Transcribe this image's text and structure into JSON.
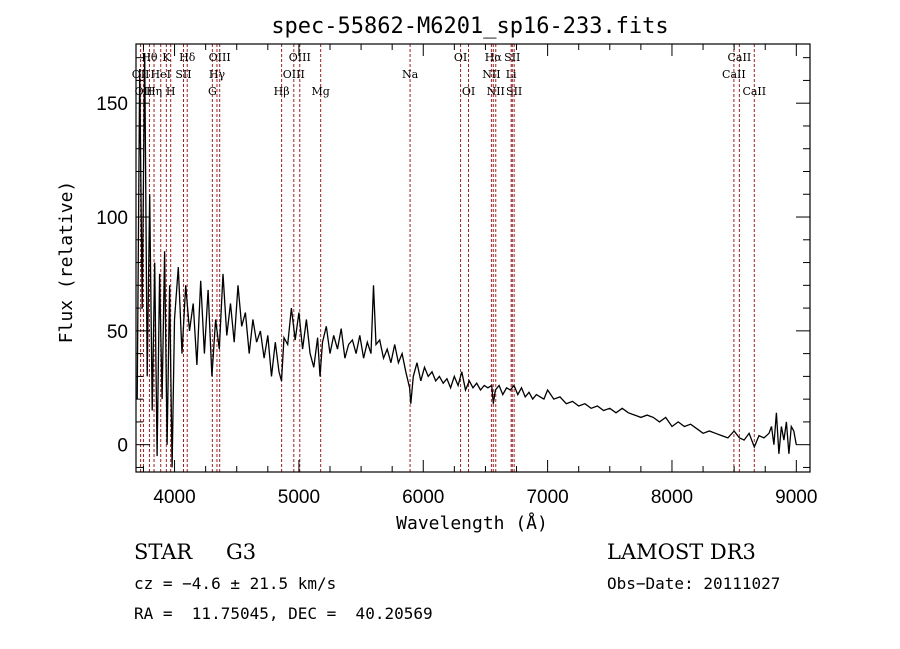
{
  "chart_data": {
    "type": "line",
    "title": "spec-55862-M6201_sp16-233.fits",
    "xlabel": "Wavelength (Å)",
    "ylabel": "Flux (relative)",
    "xlim": [
      3690,
      9110
    ],
    "ylim": [
      -12,
      176
    ],
    "xticks": [
      4000,
      5000,
      6000,
      7000,
      8000,
      9000
    ],
    "yticks": [
      0,
      50,
      100,
      150
    ],
    "x_minor_step": 250,
    "y_minor_step": 10,
    "grid": false,
    "legend": "none",
    "series": [
      {
        "name": "spectrum",
        "color": "#000000",
        "x": [
          3700,
          3720,
          3740,
          3760,
          3780,
          3800,
          3820,
          3840,
          3860,
          3880,
          3900,
          3920,
          3940,
          3960,
          3980,
          4000,
          4030,
          4060,
          4090,
          4120,
          4150,
          4180,
          4210,
          4240,
          4270,
          4300,
          4330,
          4360,
          4390,
          4420,
          4450,
          4480,
          4510,
          4540,
          4570,
          4600,
          4630,
          4660,
          4690,
          4720,
          4750,
          4780,
          4810,
          4840,
          4860,
          4880,
          4910,
          4940,
          4970,
          5000,
          5030,
          5060,
          5090,
          5120,
          5150,
          5170,
          5190,
          5220,
          5250,
          5280,
          5310,
          5340,
          5370,
          5400,
          5430,
          5460,
          5490,
          5520,
          5550,
          5580,
          5600,
          5620,
          5650,
          5680,
          5710,
          5740,
          5770,
          5800,
          5830,
          5860,
          5890,
          5900,
          5920,
          5950,
          5980,
          6010,
          6040,
          6070,
          6100,
          6130,
          6160,
          6190,
          6220,
          6250,
          6280,
          6310,
          6340,
          6370,
          6400,
          6430,
          6460,
          6490,
          6520,
          6550,
          6563,
          6580,
          6610,
          6640,
          6670,
          6700,
          6730,
          6760,
          6790,
          6820,
          6850,
          6880,
          6910,
          6940,
          6970,
          7000,
          7050,
          7100,
          7150,
          7200,
          7250,
          7300,
          7350,
          7400,
          7450,
          7500,
          7550,
          7600,
          7650,
          7700,
          7750,
          7800,
          7850,
          7900,
          7950,
          8000,
          8050,
          8100,
          8150,
          8200,
          8250,
          8300,
          8350,
          8400,
          8450,
          8500,
          8542,
          8580,
          8620,
          8662,
          8700,
          8740,
          8780,
          8800,
          8820,
          8840,
          8860,
          8880,
          8900,
          8920,
          8940,
          8960,
          8980,
          9000
        ],
        "y": [
          20,
          165,
          60,
          172,
          30,
          110,
          15,
          80,
          -5,
          75,
          20,
          85,
          0,
          70,
          -10,
          55,
          78,
          40,
          70,
          50,
          62,
          35,
          72,
          40,
          68,
          30,
          55,
          42,
          75,
          48,
          62,
          45,
          70,
          52,
          58,
          40,
          55,
          45,
          50,
          38,
          48,
          30,
          45,
          32,
          28,
          47,
          44,
          60,
          46,
          58,
          42,
          55,
          40,
          34,
          47,
          30,
          45,
          52,
          40,
          48,
          42,
          51,
          38,
          44,
          46,
          40,
          48,
          38,
          45,
          40,
          70,
          44,
          46,
          38,
          42,
          36,
          44,
          36,
          40,
          32,
          25,
          18,
          30,
          36,
          28,
          34,
          30,
          32,
          28,
          30,
          27,
          29,
          25,
          30,
          26,
          32,
          24,
          28,
          25,
          27,
          24,
          26,
          25,
          26,
          18,
          24,
          26,
          22,
          25,
          24,
          26,
          22,
          25,
          21,
          23,
          20,
          22,
          21,
          20,
          24,
          20,
          21,
          18,
          19,
          17,
          18,
          16,
          17,
          15,
          16,
          14,
          16,
          14,
          13,
          12,
          13,
          12,
          10,
          12,
          8,
          10,
          8,
          9,
          7,
          5,
          6,
          5,
          4,
          3,
          6,
          3,
          2,
          5,
          -1,
          4,
          3,
          5,
          8,
          0,
          14,
          -4,
          8,
          2,
          10,
          -4,
          8,
          6,
          0
        ]
      }
    ],
    "line_markers": {
      "color": "#a02020",
      "lines": [
        {
          "x": 3727,
          "label": "OII",
          "row": 2
        },
        {
          "x": 3750,
          "label": "OII",
          "row": 3
        },
        {
          "x": 3798,
          "label": "Hθ",
          "row": 1
        },
        {
          "x": 3835,
          "label": "Hη",
          "row": 3
        },
        {
          "x": 3889,
          "label": "HeI",
          "row": 2
        },
        {
          "x": 3934,
          "label": "K",
          "row": 1
        },
        {
          "x": 3969,
          "label": "H",
          "row": 3
        },
        {
          "x": 4072,
          "label": "SII",
          "row": 2
        },
        {
          "x": 4102,
          "label": "Hδ",
          "row": 1
        },
        {
          "x": 4304,
          "label": "G",
          "row": 3
        },
        {
          "x": 4341,
          "label": "Hγ",
          "row": 2
        },
        {
          "x": 4363,
          "label": "OIII",
          "row": 1
        },
        {
          "x": 4861,
          "label": "Hβ",
          "row": 3
        },
        {
          "x": 4959,
          "label": "OIII",
          "row": 2
        },
        {
          "x": 5007,
          "label": "OIII",
          "row": 1
        },
        {
          "x": 5175,
          "label": "Mg",
          "row": 3
        },
        {
          "x": 5894,
          "label": "Na",
          "row": 2
        },
        {
          "x": 6300,
          "label": "OI",
          "row": 1
        },
        {
          "x": 6364,
          "label": "OI",
          "row": 3
        },
        {
          "x": 6548,
          "label": "NII",
          "row": 2
        },
        {
          "x": 6563,
          "label": "Hα",
          "row": 1
        },
        {
          "x": 6583,
          "label": "NII",
          "row": 3
        },
        {
          "x": 6707,
          "label": "Li",
          "row": 2
        },
        {
          "x": 6716,
          "label": "SII",
          "row": 1
        },
        {
          "x": 6731,
          "label": "SII",
          "row": 3
        },
        {
          "x": 8498,
          "label": "CaII",
          "row": 2
        },
        {
          "x": 8542,
          "label": "CaII",
          "row": 1
        },
        {
          "x": 8662,
          "label": "CaII",
          "row": 3
        }
      ]
    }
  },
  "info": {
    "object_class": "STAR",
    "subclass": "G3",
    "survey": "LAMOST DR3",
    "redshift": "cz = −4.6 ± 21.5 km/s",
    "obs_date": "Obs−Date: 20111027",
    "coords": "RA =  11.75045, DEC =  40.20569"
  }
}
